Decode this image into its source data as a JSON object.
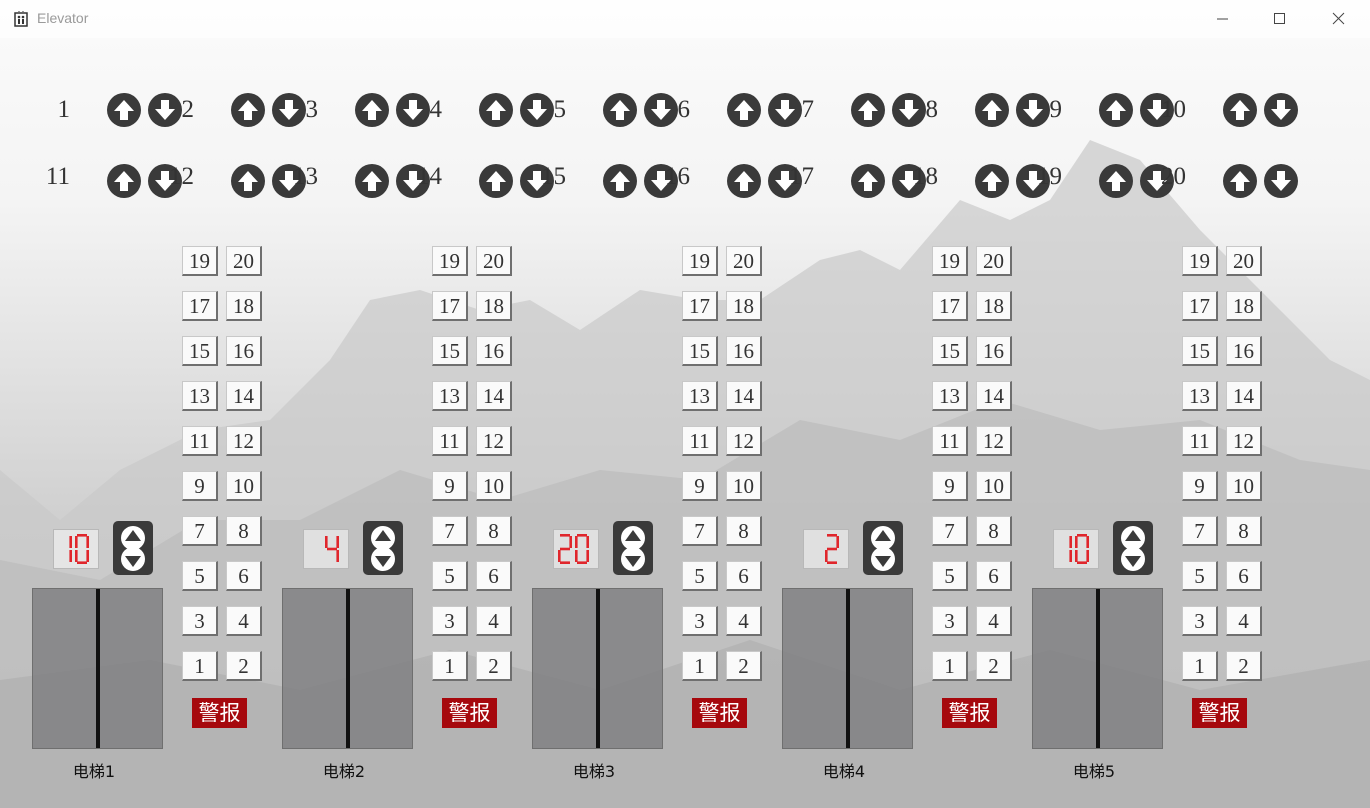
{
  "window": {
    "title": "Elevator",
    "app_icon": "elevator-icon",
    "controls": [
      "minimize-icon",
      "maximize-icon",
      "close-icon"
    ]
  },
  "hall_calls": {
    "floors": [
      "1",
      "2",
      "3",
      "4",
      "5",
      "6",
      "7",
      "8",
      "9",
      "10",
      "11",
      "12",
      "13",
      "14",
      "15",
      "16",
      "17",
      "18",
      "19",
      "20"
    ],
    "up_icon": "arrow-up-icon",
    "down_icon": "arrow-down-icon"
  },
  "panel_floors": [
    "19",
    "20",
    "17",
    "18",
    "15",
    "16",
    "13",
    "14",
    "11",
    "12",
    "9",
    "10",
    "7",
    "8",
    "5",
    "6",
    "3",
    "4",
    "1",
    "2"
  ],
  "elevators": [
    {
      "label": "电梯1",
      "floor_display": "10",
      "alarm_label": "警报"
    },
    {
      "label": "电梯2",
      "floor_display": "4",
      "alarm_label": "警报"
    },
    {
      "label": "电梯3",
      "floor_display": "20",
      "alarm_label": "警报"
    },
    {
      "label": "电梯4",
      "floor_display": "2",
      "alarm_label": "警报"
    },
    {
      "label": "电梯5",
      "floor_display": "10",
      "alarm_label": "警报"
    }
  ],
  "colors": {
    "display_digit": "#e0262c",
    "alarm": "#a6080d",
    "button_dark": "#3a3a3a"
  }
}
